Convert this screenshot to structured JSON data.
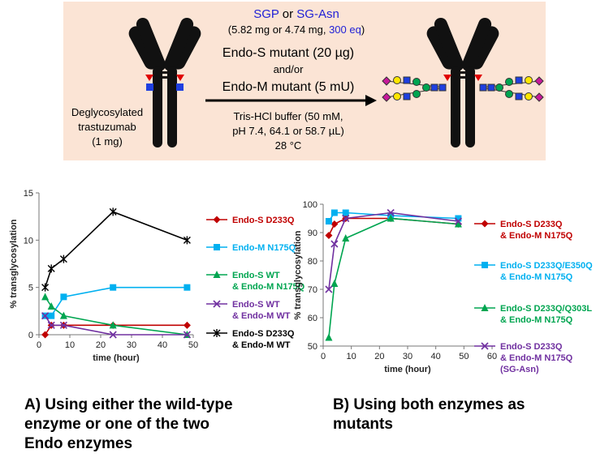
{
  "scheme": {
    "bg_color": "#fbe4d5",
    "line1_a": "SGP",
    "line1_or": " or ",
    "line1_b": "SG-Asn",
    "line2_a": "(5.82 mg or 4.74 mg, ",
    "line2_b": "300 eq",
    "line2_c": ")",
    "enzyme1": "Endo-S mutant (20 µg)",
    "andor": "and/or",
    "enzyme2": "Endo-M mutant (5 mU)",
    "buffer1": "Tris-HCl buffer (50 mM,",
    "buffer2": "pH 7.4, 64.1 or 58.7 µL)",
    "temp": "28 °C",
    "substrate1": "Deglycosylated",
    "substrate2": "trastuzumab",
    "substrate3": "(1 mg)",
    "blue_text_color": "#1f1fd6"
  },
  "captions": {
    "a_line1": "A)  Using either the wild-type",
    "a_line2": "enzyme or one of the two",
    "a_line3": "Endo enzymes",
    "b_line1": "B)   Using both enzymes as",
    "b_line2": "mutants"
  },
  "chart_data": [
    {
      "type": "line",
      "xlabel": "time (hour)",
      "ylabel": "% transglycosylation",
      "xlim": [
        0,
        50
      ],
      "ylim": [
        0,
        15
      ],
      "xticks": [
        0,
        10,
        20,
        30,
        40,
        50
      ],
      "yticks": [
        0,
        5,
        10,
        15
      ],
      "grid": false,
      "legend": "right",
      "series": [
        {
          "name": [
            "Endo-S D233Q"
          ],
          "color": "#c00000",
          "marker": "diamond",
          "x": [
            2,
            4,
            8,
            24,
            48
          ],
          "y": [
            0,
            1,
            1,
            1,
            1
          ]
        },
        {
          "name": [
            "Endo-M N175Q"
          ],
          "color": "#00b0f0",
          "marker": "square",
          "x": [
            2,
            4,
            8,
            24,
            48
          ],
          "y": [
            2,
            2,
            4,
            5,
            5
          ]
        },
        {
          "name": [
            "Endo-S WT",
            "& Endo-M N175Q"
          ],
          "color": "#00a550",
          "marker": "triangle",
          "x": [
            2,
            4,
            8,
            24,
            48
          ],
          "y": [
            4,
            3,
            2,
            1,
            0
          ]
        },
        {
          "name": [
            "Endo-S WT",
            "& Endo-M WT"
          ],
          "color": "#7030a0",
          "marker": "x",
          "x": [
            2,
            4,
            8,
            24,
            48
          ],
          "y": [
            2,
            1,
            1,
            0,
            0
          ]
        },
        {
          "name": [
            "Endo-S D233Q",
            "& Endo-M WT"
          ],
          "color": "#000000",
          "marker": "star",
          "x": [
            2,
            4,
            8,
            24,
            48
          ],
          "y": [
            5,
            7,
            8,
            13,
            10
          ]
        }
      ]
    },
    {
      "type": "line",
      "xlabel": "time (hour)",
      "ylabel": "% transglycosylation",
      "xlim": [
        0,
        60
      ],
      "ylim": [
        50,
        100
      ],
      "xticks": [
        0,
        10,
        20,
        30,
        40,
        50,
        60
      ],
      "yticks": [
        50,
        60,
        70,
        80,
        90,
        100
      ],
      "grid": false,
      "legend": "right",
      "series": [
        {
          "name": [
            "Endo-S D233Q",
            "& Endo-M N175Q"
          ],
          "color": "#c00000",
          "marker": "diamond",
          "x": [
            2,
            4,
            8,
            24,
            48
          ],
          "y": [
            89,
            93,
            95,
            95,
            93
          ]
        },
        {
          "name": [
            "Endo-S D233Q/E350Q",
            "& Endo-M N175Q"
          ],
          "color": "#00b0f0",
          "marker": "square",
          "x": [
            2,
            4,
            8,
            24,
            48
          ],
          "y": [
            94,
            97,
            97,
            96,
            95
          ]
        },
        {
          "name": [
            "Endo-S D233Q/Q303L",
            "& Endo-M N175Q"
          ],
          "color": "#00a550",
          "marker": "triangle",
          "x": [
            2,
            4,
            8,
            24,
            48
          ],
          "y": [
            53,
            72,
            88,
            95,
            93
          ]
        },
        {
          "name": [
            "Endo-S D233Q",
            "& Endo-M N175Q",
            "(SG-Asn)"
          ],
          "color": "#7030a0",
          "marker": "x",
          "x": [
            2,
            4,
            8,
            24,
            48
          ],
          "y": [
            70,
            86,
            95,
            97,
            94
          ]
        }
      ]
    }
  ]
}
